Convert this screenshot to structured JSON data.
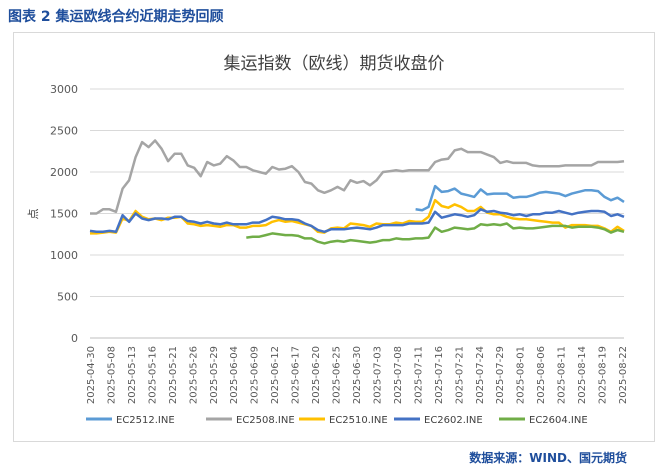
{
  "caption": "图表 2  集运欧线合约近期走势回顾",
  "source": "数据来源：WIND、国元期货",
  "chart_data": {
    "type": "line",
    "title": "集运指数（欧线）期货收盘价",
    "ylabel": "点",
    "xlabel": "",
    "ylim": [
      0,
      3000
    ],
    "yticks": [
      "0",
      "500",
      "1000",
      "1500",
      "2000",
      "2500",
      "3000"
    ],
    "grid": true,
    "legend_position": "bottom",
    "x_labels": [
      "2025-04-30",
      "2025-05-08",
      "2025-05-13",
      "2025-05-16",
      "2025-05-21",
      "2025-05-26",
      "2025-05-29",
      "2025-06-04",
      "2025-06-09",
      "2025-06-12",
      "2025-06-17",
      "2025-06-20",
      "2025-06-25",
      "2025-06-30",
      "2025-07-03",
      "2025-07-08",
      "2025-07-11",
      "2025-07-16",
      "2025-07-21",
      "2025-07-24",
      "2025-07-29",
      "2025-08-01",
      "2025-08-06",
      "2025-08-11",
      "2025-08-14",
      "2025-08-19",
      "2025-08-22"
    ],
    "series": [
      {
        "name": "EC2512.INE",
        "color": "#5b9bd5",
        "values": [
          null,
          null,
          null,
          null,
          null,
          null,
          null,
          null,
          null,
          null,
          null,
          null,
          null,
          null,
          null,
          null,
          null,
          null,
          null,
          null,
          null,
          null,
          null,
          null,
          null,
          null,
          null,
          null,
          null,
          null,
          null,
          null,
          null,
          null,
          null,
          null,
          null,
          null,
          null,
          null,
          null,
          null,
          null,
          null,
          null,
          null,
          null,
          null,
          null,
          null,
          1550,
          1540,
          1580,
          1830,
          1760,
          1770,
          1800,
          1740,
          1720,
          1700,
          1790,
          1730,
          1740,
          1740,
          1740,
          1690,
          1700,
          1700,
          1720,
          1750,
          1760,
          1750,
          1740,
          1710,
          1740,
          1760,
          1780,
          1780,
          1770,
          1700,
          1660,
          1690,
          1640
        ]
      },
      {
        "name": "EC2508.INE",
        "color": "#a5a5a5",
        "values": [
          1500,
          1500,
          1550,
          1550,
          1520,
          1800,
          1900,
          2180,
          2360,
          2300,
          2380,
          2280,
          2130,
          2220,
          2220,
          2080,
          2050,
          1950,
          2120,
          2080,
          2100,
          2190,
          2140,
          2060,
          2060,
          2020,
          2000,
          1980,
          2060,
          2030,
          2040,
          2070,
          2000,
          1880,
          1860,
          1780,
          1750,
          1780,
          1820,
          1780,
          1900,
          1870,
          1890,
          1840,
          1900,
          2000,
          2010,
          2020,
          2010,
          2020,
          2020,
          2020,
          2020,
          2120,
          2150,
          2160,
          2260,
          2280,
          2240,
          2240,
          2240,
          2210,
          2180,
          2110,
          2130,
          2110,
          2110,
          2110,
          2080,
          2070,
          2070,
          2070,
          2070,
          2080,
          2080,
          2080,
          2080,
          2080,
          2120,
          2120,
          2120,
          2120,
          2130
        ]
      },
      {
        "name": "EC2510.INE",
        "color": "#ffc000",
        "values": [
          1260,
          1260,
          1270,
          1280,
          1270,
          1440,
          1410,
          1530,
          1460,
          1430,
          1440,
          1420,
          1450,
          1450,
          1460,
          1380,
          1370,
          1350,
          1360,
          1350,
          1340,
          1360,
          1360,
          1330,
          1330,
          1350,
          1350,
          1360,
          1400,
          1420,
          1400,
          1410,
          1390,
          1370,
          1350,
          1280,
          1270,
          1320,
          1330,
          1320,
          1380,
          1370,
          1360,
          1340,
          1380,
          1370,
          1370,
          1390,
          1380,
          1410,
          1400,
          1400,
          1460,
          1660,
          1590,
          1570,
          1610,
          1580,
          1530,
          1530,
          1580,
          1510,
          1490,
          1490,
          1460,
          1440,
          1430,
          1430,
          1420,
          1410,
          1400,
          1390,
          1390,
          1330,
          1360,
          1360,
          1360,
          1350,
          1350,
          1320,
          1280,
          1340,
          1290
        ]
      },
      {
        "name": "EC2602.INE",
        "color": "#4472c4",
        "values": [
          1290,
          1280,
          1280,
          1290,
          1280,
          1480,
          1400,
          1500,
          1440,
          1420,
          1440,
          1440,
          1430,
          1460,
          1460,
          1410,
          1400,
          1380,
          1400,
          1380,
          1370,
          1390,
          1370,
          1370,
          1370,
          1390,
          1390,
          1420,
          1460,
          1450,
          1430,
          1430,
          1420,
          1380,
          1350,
          1300,
          1280,
          1310,
          1310,
          1310,
          1320,
          1330,
          1320,
          1310,
          1330,
          1360,
          1360,
          1360,
          1360,
          1380,
          1380,
          1380,
          1390,
          1520,
          1450,
          1470,
          1490,
          1480,
          1460,
          1480,
          1550,
          1520,
          1530,
          1510,
          1500,
          1480,
          1490,
          1470,
          1490,
          1490,
          1510,
          1510,
          1530,
          1510,
          1490,
          1510,
          1520,
          1530,
          1530,
          1520,
          1470,
          1490,
          1460
        ]
      },
      {
        "name": "EC2604.INE",
        "color": "#70ad47",
        "values": [
          null,
          null,
          null,
          null,
          null,
          null,
          null,
          null,
          null,
          null,
          null,
          null,
          null,
          null,
          null,
          null,
          null,
          null,
          null,
          null,
          null,
          null,
          null,
          null,
          1210,
          1220,
          1220,
          1240,
          1260,
          1250,
          1240,
          1240,
          1230,
          1200,
          1200,
          1160,
          1140,
          1160,
          1170,
          1160,
          1180,
          1170,
          1160,
          1150,
          1160,
          1180,
          1180,
          1200,
          1190,
          1190,
          1200,
          1200,
          1210,
          1330,
          1280,
          1300,
          1330,
          1320,
          1310,
          1320,
          1370,
          1360,
          1370,
          1360,
          1380,
          1320,
          1330,
          1320,
          1320,
          1330,
          1340,
          1350,
          1350,
          1350,
          1330,
          1340,
          1340,
          1340,
          1330,
          1310,
          1270,
          1300,
          1280
        ]
      }
    ]
  }
}
